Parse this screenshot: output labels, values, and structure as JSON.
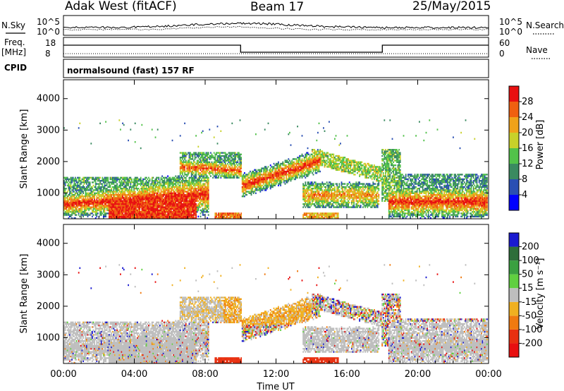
{
  "header": {
    "station": "Adak West (fitACF)",
    "beam": "Beam 17",
    "date": "25/May/2015"
  },
  "side_labels": {
    "nsky": "N.Sky",
    "freq": "Freq.",
    "freq_unit": "[MHz]",
    "cpid": "CPID",
    "nsearch": "N.Search",
    "nave": "Nave"
  },
  "cpid_text": "normalsound (fast) 157 RF",
  "nsky_axis": {
    "top": "10^5",
    "bottom": "10^0"
  },
  "nsearch_axis": {
    "top": "10^5",
    "bottom": "10^0"
  },
  "freq_axis": {
    "top": "18",
    "bottom": "8"
  },
  "nave_axis": {
    "top": "60",
    "bottom": "0"
  },
  "chart_data": [
    {
      "type": "heatmap",
      "name": "power",
      "ylabel": "Slant Range [km]",
      "ylim": [
        180,
        4600
      ],
      "yticks": [
        "1000",
        "2000",
        "3000",
        "4000"
      ],
      "colorbar_label": "Power [dB]",
      "colorbar_ticks": [
        "4",
        "8",
        "12",
        "16",
        "20",
        "24",
        "28"
      ],
      "colors": [
        "#0000ff",
        "#2a4fb3",
        "#3a8a60",
        "#52c24a",
        "#c8d12a",
        "#f0a21a",
        "#f06010",
        "#e81010"
      ]
    },
    {
      "type": "heatmap",
      "name": "velocity",
      "ylabel": "Slant Range [km]",
      "ylim": [
        180,
        4600
      ],
      "yticks": [
        "1000",
        "2000",
        "3000",
        "4000"
      ],
      "colorbar_label": "Velocity [m s⁻¹]",
      "colorbar_ticks": [
        "200",
        "100",
        "50",
        "15",
        "-15",
        "-50",
        "-100",
        "-200"
      ],
      "colors": [
        "#1a1ad0",
        "#2e6e3a",
        "#3aa040",
        "#60d040",
        "#bebebe",
        "#f0b020",
        "#f07a10",
        "#e83010",
        "#e81010"
      ]
    }
  ],
  "time_axis": {
    "label": "Time UT",
    "ticks": [
      "00:00",
      "04:00",
      "08:00",
      "12:00",
      "16:00",
      "20:00",
      "00:00"
    ],
    "range_hours": [
      0,
      24
    ]
  }
}
